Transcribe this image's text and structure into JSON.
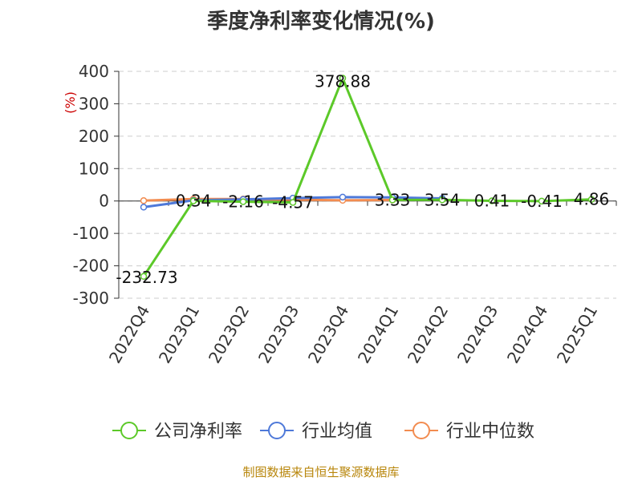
{
  "chart_data": {
    "type": "line",
    "title": "季度净利率变化情况(%)",
    "ylabel": "(%)",
    "xlabel": "",
    "categories": [
      "2022Q4",
      "2023Q1",
      "2023Q2",
      "2023Q3",
      "2023Q4",
      "2024Q1",
      "2024Q2",
      "2024Q3",
      "2024Q4",
      "2025Q1"
    ],
    "ylim": [
      -300,
      400
    ],
    "yticks": [
      400,
      300,
      200,
      100,
      0,
      -100,
      -200,
      -300
    ],
    "grid": true,
    "legend_position": "bottom",
    "series": [
      {
        "name": "公司净利率",
        "color": "#5cc929",
        "values": [
          -232.73,
          0.34,
          -2.16,
          -4.57,
          378.88,
          3.33,
          3.54,
          0.41,
          -0.41,
          4.86
        ],
        "labels": [
          "-232.73",
          "0.34",
          "-2.16",
          "-4.57",
          "378.88",
          "3.33",
          "3.54",
          "0.41",
          "-0.41",
          "4.86"
        ]
      },
      {
        "name": "行业均值",
        "color": "#4e79d9",
        "values": [
          -19,
          2,
          5,
          9,
          12,
          11,
          8,
          null,
          null,
          null
        ]
      },
      {
        "name": "行业中位数",
        "color": "#f28c50",
        "values": [
          1,
          6,
          6,
          4,
          2,
          3,
          6,
          null,
          null,
          null
        ]
      }
    ]
  },
  "source": "制图数据来自恒生聚源数据库"
}
